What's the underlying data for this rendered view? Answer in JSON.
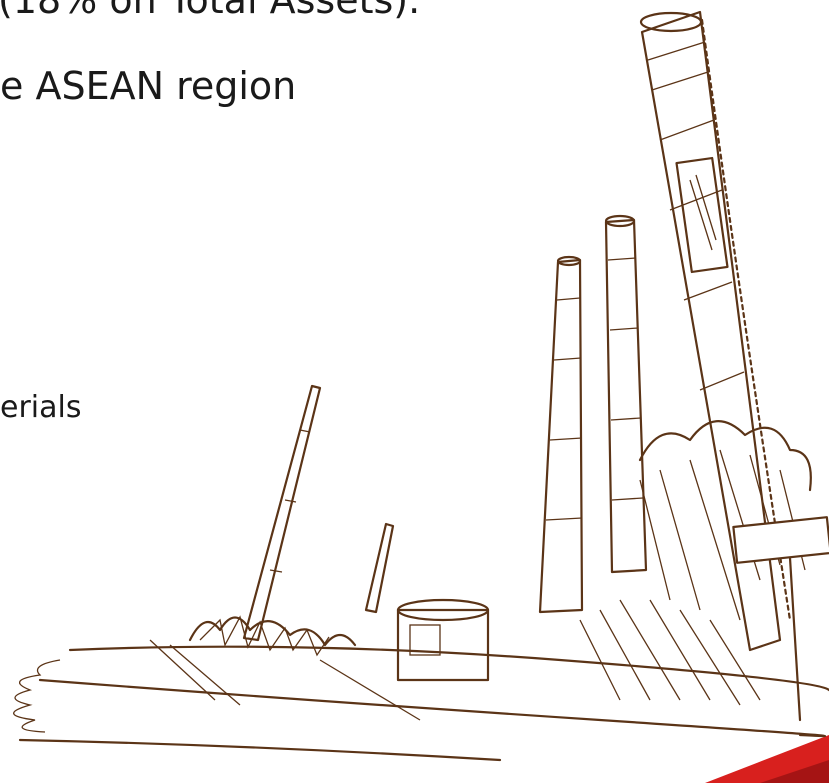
{
  "text_lines": [
    "(18% on Total Assets).",
    "e ASEAN region",
    "erials"
  ]
}
